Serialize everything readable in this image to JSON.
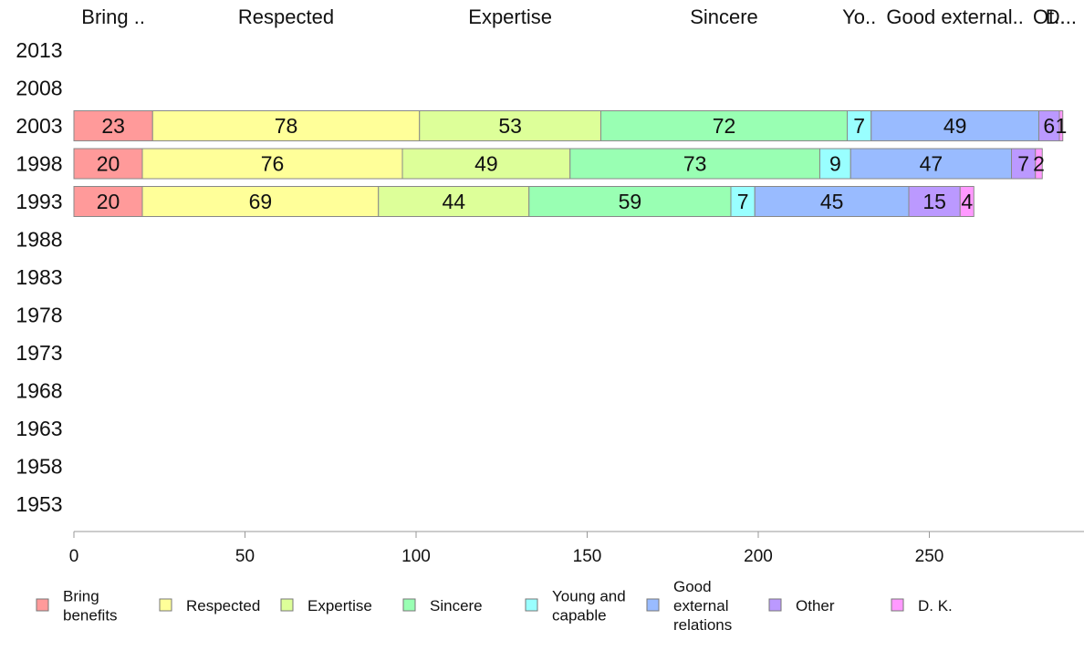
{
  "chart_data": {
    "type": "bar",
    "orientation": "horizontal",
    "stacked": true,
    "categories": [
      "2013",
      "2008",
      "2003",
      "1998",
      "1993",
      "1988",
      "1983",
      "1978",
      "1973",
      "1968",
      "1963",
      "1958",
      "1953"
    ],
    "series": [
      {
        "name": "Bring benefits",
        "values": [
          null,
          null,
          23,
          20,
          20,
          null,
          null,
          null,
          null,
          null,
          null,
          null,
          null
        ],
        "color": "#ff9a9a"
      },
      {
        "name": "Respected",
        "values": [
          null,
          null,
          78,
          76,
          69,
          null,
          null,
          null,
          null,
          null,
          null,
          null,
          null
        ],
        "color": "#ffff99"
      },
      {
        "name": "Expertise",
        "values": [
          null,
          null,
          53,
          49,
          44,
          null,
          null,
          null,
          null,
          null,
          null,
          null,
          null
        ],
        "color": "#ddff99"
      },
      {
        "name": "Sincere",
        "values": [
          null,
          null,
          72,
          73,
          59,
          null,
          null,
          null,
          null,
          null,
          null,
          null,
          null
        ],
        "color": "#99ffb3"
      },
      {
        "name": "Young and capable",
        "values": [
          null,
          null,
          7,
          9,
          7,
          null,
          null,
          null,
          null,
          null,
          null,
          null,
          null
        ],
        "color": "#99ffff"
      },
      {
        "name": "Good external relations",
        "values": [
          null,
          null,
          49,
          47,
          45,
          null,
          null,
          null,
          null,
          null,
          null,
          null,
          null
        ],
        "color": "#99bbff"
      },
      {
        "name": "Other",
        "values": [
          null,
          null,
          6,
          7,
          15,
          null,
          null,
          null,
          null,
          null,
          null,
          null,
          null
        ],
        "color": "#bb99ff"
      },
      {
        "name": "D. K.",
        "values": [
          null,
          null,
          1,
          2,
          4,
          null,
          null,
          null,
          null,
          null,
          null,
          null,
          null
        ],
        "color": "#ff99ff"
      }
    ],
    "top_labels": [
      "Bring ..",
      "Respected",
      "Expertise",
      "Sincere",
      "Yo..",
      "Good external..",
      "Ot..",
      "D..."
    ],
    "x_ticks": [
      0,
      50,
      100,
      150,
      200,
      250
    ],
    "xlim": [
      0,
      295
    ],
    "legend": {
      "placement": "bottom",
      "entries": [
        {
          "lines": [
            "Bring",
            "benefits"
          ],
          "color": "#ff9a9a"
        },
        {
          "lines": [
            "Respected"
          ],
          "color": "#ffff99"
        },
        {
          "lines": [
            "Expertise"
          ],
          "color": "#ddff99"
        },
        {
          "lines": [
            "Sincere"
          ],
          "color": "#99ffb3"
        },
        {
          "lines": [
            "Young and",
            "capable"
          ],
          "color": "#99ffff"
        },
        {
          "lines": [
            "Good",
            "external",
            "relations"
          ],
          "color": "#99bbff"
        },
        {
          "lines": [
            "Other"
          ],
          "color": "#bb99ff"
        },
        {
          "lines": [
            "D. K."
          ],
          "color": "#ff99ff"
        }
      ]
    },
    "grid": false
  }
}
